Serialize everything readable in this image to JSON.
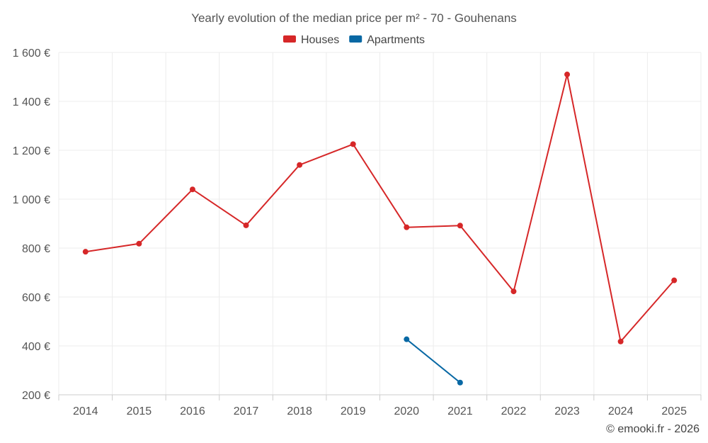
{
  "chart_data": {
    "type": "line",
    "title": "Yearly evolution of the median price per m² - 70 - Gouhenans",
    "xlabel": "",
    "ylabel": "",
    "categories": [
      "2014",
      "2015",
      "2016",
      "2017",
      "2018",
      "2019",
      "2020",
      "2021",
      "2022",
      "2023",
      "2024",
      "2025"
    ],
    "ylim": [
      200,
      1600
    ],
    "yticks": [
      200,
      400,
      600,
      800,
      1000,
      1200,
      1400,
      1600
    ],
    "ytick_labels": [
      "200 €",
      "400 €",
      "600 €",
      "800 €",
      "1 000 €",
      "1 200 €",
      "1 400 €",
      "1 600 €"
    ],
    "grid": true,
    "legend_position": "top-center",
    "series": [
      {
        "name": "Houses",
        "color": "#d62728",
        "values": [
          785,
          818,
          1040,
          893,
          1140,
          1225,
          885,
          892,
          623,
          1510,
          418,
          668
        ]
      },
      {
        "name": "Apartments",
        "color": "#0868a4",
        "values": [
          null,
          null,
          null,
          null,
          null,
          null,
          427,
          250,
          null,
          null,
          null,
          null
        ]
      }
    ],
    "credit": "© emooki.fr - 2026"
  }
}
